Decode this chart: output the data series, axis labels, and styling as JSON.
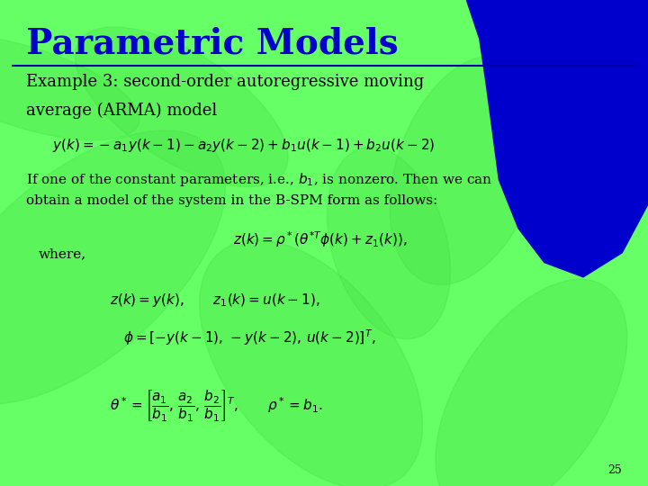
{
  "title": "Parametric Models",
  "title_color": "#0000CC",
  "title_fontsize": 28,
  "bg_color": "#66FF66",
  "line_color": "#0000AA",
  "text_color": "#000000",
  "blue_shape_color": "#0000CC",
  "page_number": "25",
  "example_heading_line1": "Example 3: second-order autoregressive moving",
  "example_heading_line2": "average (ARMA) model",
  "equation1": "$y(k) = -a_1 y(k-1) - a_2 y(k-2) + b_1 u(k-1) + b_2 u(k-2)$",
  "text_body_line1": "If one of the constant parameters, i.e., $b_1$, is nonzero. Then we can",
  "text_body_line2": "obtain a model of the system in the B-SPM form as follows:",
  "equation2": "$z(k) = \\rho^*(\\theta^{*T}\\phi(k) + z_1(k)),$",
  "where_text": "where,",
  "equation3a": "$z(k) = y(k), \\qquad z_1(k) = u(k-1),$",
  "equation3b": "$\\phi = [-y(k-1),\\, -y(k-2),\\, u(k-2)]^T,$",
  "equation4": "$\\theta^* = \\left[\\dfrac{a_1}{b_1},\\, \\dfrac{a_2}{b_1},\\, \\dfrac{b_2}{b_1}\\right]^T, \\qquad \\rho^* = b_1.$"
}
